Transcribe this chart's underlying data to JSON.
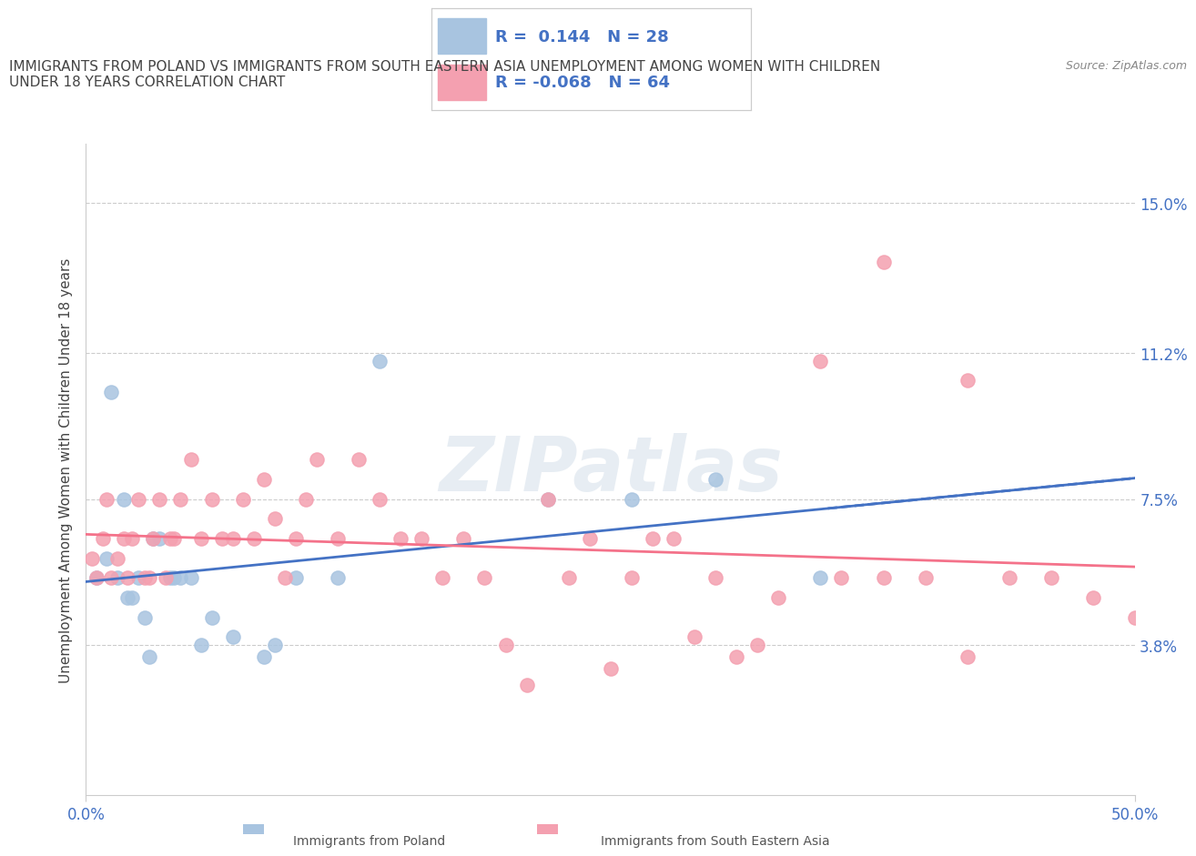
{
  "title": "IMMIGRANTS FROM POLAND VS IMMIGRANTS FROM SOUTH EASTERN ASIA UNEMPLOYMENT AMONG WOMEN WITH CHILDREN\nUNDER 18 YEARS CORRELATION CHART",
  "source": "Source: ZipAtlas.com",
  "ylabel": "Unemployment Among Women with Children Under 18 years",
  "xlabel_ticks": [
    "0.0%",
    "50.0%"
  ],
  "ytick_labels": [
    "3.8%",
    "7.5%",
    "11.2%",
    "15.0%"
  ],
  "ytick_values": [
    3.8,
    7.5,
    11.2,
    15.0
  ],
  "xlim": [
    0,
    50
  ],
  "ylim": [
    0,
    16.5
  ],
  "r_poland": 0.144,
  "n_poland": 28,
  "r_sea": -0.068,
  "n_sea": 64,
  "poland_color": "#a8c4e0",
  "sea_color": "#f4a0b0",
  "poland_line_color": "#4472C4",
  "sea_line_color": "#F4728A",
  "legend_text_color": "#4472C4",
  "watermark": "ZIPatlas",
  "poland_x": [
    0.5,
    1.0,
    1.2,
    1.5,
    1.8,
    2.0,
    2.2,
    2.5,
    2.8,
    3.0,
    3.2,
    3.5,
    4.0,
    4.2,
    4.5,
    5.0,
    5.5,
    6.0,
    7.0,
    8.5,
    9.0,
    10.0,
    12.0,
    14.0,
    22.0,
    26.0,
    30.0,
    35.0
  ],
  "poland_y": [
    5.5,
    6.0,
    10.2,
    5.5,
    7.5,
    5.0,
    5.0,
    5.5,
    4.5,
    3.5,
    6.5,
    6.5,
    5.5,
    5.5,
    5.5,
    5.5,
    3.8,
    4.5,
    4.0,
    3.5,
    3.8,
    5.5,
    5.5,
    11.0,
    7.5,
    7.5,
    8.0,
    5.5
  ],
  "sea_x": [
    0.3,
    0.5,
    0.8,
    1.0,
    1.2,
    1.5,
    1.8,
    2.0,
    2.2,
    2.5,
    2.8,
    3.0,
    3.2,
    3.5,
    3.8,
    4.0,
    4.2,
    4.5,
    5.0,
    5.5,
    6.0,
    6.5,
    7.0,
    7.5,
    8.0,
    8.5,
    9.0,
    9.5,
    10.0,
    10.5,
    11.0,
    12.0,
    13.0,
    14.0,
    15.0,
    16.0,
    17.0,
    18.0,
    19.0,
    20.0,
    21.0,
    22.0,
    23.0,
    24.0,
    25.0,
    26.0,
    27.0,
    28.0,
    29.0,
    30.0,
    31.0,
    32.0,
    33.0,
    35.0,
    36.0,
    38.0,
    40.0,
    42.0,
    44.0,
    46.0,
    48.0,
    50.0,
    38.0,
    42.0
  ],
  "sea_y": [
    6.0,
    5.5,
    6.5,
    7.5,
    5.5,
    6.0,
    6.5,
    5.5,
    6.5,
    7.5,
    5.5,
    5.5,
    6.5,
    7.5,
    5.5,
    6.5,
    6.5,
    7.5,
    8.5,
    6.5,
    7.5,
    6.5,
    6.5,
    7.5,
    6.5,
    8.0,
    7.0,
    5.5,
    6.5,
    7.5,
    8.5,
    6.5,
    8.5,
    7.5,
    6.5,
    6.5,
    5.5,
    6.5,
    5.5,
    3.8,
    2.8,
    7.5,
    5.5,
    6.5,
    3.2,
    5.5,
    6.5,
    6.5,
    4.0,
    5.5,
    3.5,
    3.8,
    5.0,
    11.0,
    5.5,
    5.5,
    5.5,
    3.5,
    5.5,
    5.5,
    5.0,
    4.5,
    13.5,
    10.5
  ]
}
